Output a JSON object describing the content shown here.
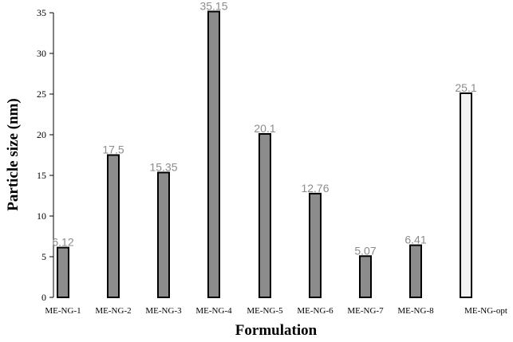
{
  "chart_data": {
    "type": "bar",
    "title": "",
    "xlabel": "Formulation",
    "ylabel": "Particle size (nm)",
    "ylim": [
      0,
      35
    ],
    "yticks": [
      0,
      5,
      10,
      15,
      20,
      25,
      30,
      35
    ],
    "grid": false,
    "legend": "none",
    "categories": [
      "ME-NG-1",
      "ME-NG-2",
      "ME-NG-3",
      "ME-NG-4",
      "ME-NG-5",
      "ME-NG-6",
      "ME-NG-7",
      "ME-NG-8",
      "ME-NG-opt"
    ],
    "values": [
      6.12,
      17.5,
      15.35,
      35.15,
      20.1,
      12.76,
      5.07,
      6.41,
      25.1
    ],
    "data_labels": [
      "6.12",
      "17.5",
      "15.35",
      "35.15",
      "20.1",
      "12.76",
      "5.07",
      "6.41",
      "25.1"
    ],
    "bar_colors": [
      "#8c8c8c",
      "#8c8c8c",
      "#8c8c8c",
      "#8c8c8c",
      "#8c8c8c",
      "#8c8c8c",
      "#8c8c8c",
      "#8c8c8c",
      "#f2f2f2"
    ],
    "bar_edge_color": "#000000",
    "label_color": "#8c8c8c"
  }
}
